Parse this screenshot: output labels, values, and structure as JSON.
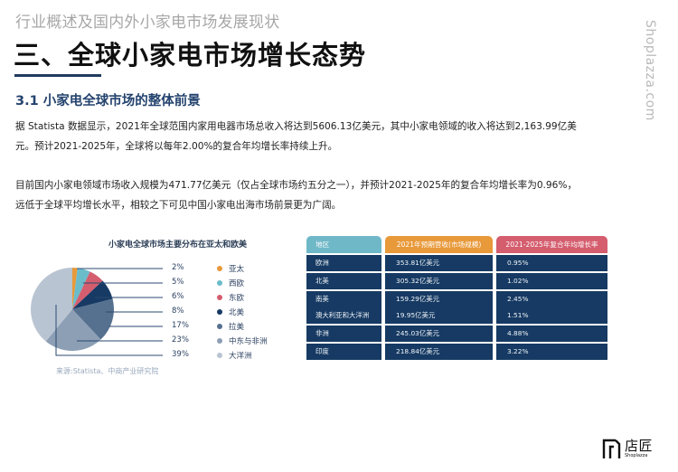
{
  "header": {
    "subtitle": "行业概述及国内外小家电市场发展现状",
    "title": "三、全球小家电市场增长态势",
    "accent_color": "#1f3a5f"
  },
  "watermark": "Shoplazza.com",
  "section": {
    "heading": "3.1 小家电全球市场的整体前景"
  },
  "paragraphs": [
    {
      "lines": [
        "据 Statista 数据显示，2021年全球范围内家用电器市场总收入将达到5606.13亿美元，其中小家电领域的收入将达到2,163.99亿美",
        "元。预计2021-2025年，全球将以每年2.00%的复合年均增长率持续上升。"
      ]
    },
    {
      "lines": [
        "目前国内小家电领域市场收入规模为471.77亿美元（仅占全球市场约五分之一），并预计2021-2025年的复合年均增长率为0.96%，",
        "远低于全球平均增长水平，相较之下可见中国小家电出海市场前景更为广阔。"
      ]
    }
  ],
  "chart_data": {
    "type": "pie",
    "title": "小家电全球市场主要分布在亚太和欧美",
    "categories": [
      "亚太",
      "西欧",
      "东欧",
      "北美",
      "拉美",
      "中东与非洲",
      "大洋洲"
    ],
    "values": [
      2,
      5,
      6,
      8,
      17,
      23,
      39
    ],
    "labels": [
      "2%",
      "5%",
      "6%",
      "8%",
      "17%",
      "23%",
      "39%"
    ],
    "colors": [
      "#e8993a",
      "#6bbccb",
      "#d45d6e",
      "#163a63",
      "#56708f",
      "#8d9fb5",
      "#b9c4d2"
    ],
    "legend_position": "right",
    "source": "来源:Statista、中商产业研究院"
  },
  "table": {
    "headers": [
      "地区",
      "2021年预期营收(市场规模)",
      "2021-2025年复合年均增长率"
    ],
    "header_colors": [
      "#6fb8c8",
      "#e8993a",
      "#d45d6e"
    ],
    "rows": [
      {
        "region": [
          "欧洲"
        ],
        "revenue": [
          "353.81亿美元"
        ],
        "cagr": [
          "0.95%"
        ]
      },
      {
        "region": [
          "北美"
        ],
        "revenue": [
          "305.32亿美元"
        ],
        "cagr": [
          "1.02%"
        ]
      },
      {
        "region": [
          "南美",
          "澳大利亚和大洋洲"
        ],
        "revenue": [
          "159.29亿美元",
          "19.95亿美元"
        ],
        "cagr": [
          "2.45%",
          "1.51%"
        ]
      },
      {
        "region": [
          "非洲"
        ],
        "revenue": [
          "245.03亿美元"
        ],
        "cagr": [
          "4.88%"
        ]
      },
      {
        "region": [
          "印度"
        ],
        "revenue": [
          "218.84亿美元"
        ],
        "cagr": [
          "3.22%"
        ]
      }
    ]
  },
  "logo": {
    "cn": "店匠",
    "en": "Shoplazza"
  }
}
